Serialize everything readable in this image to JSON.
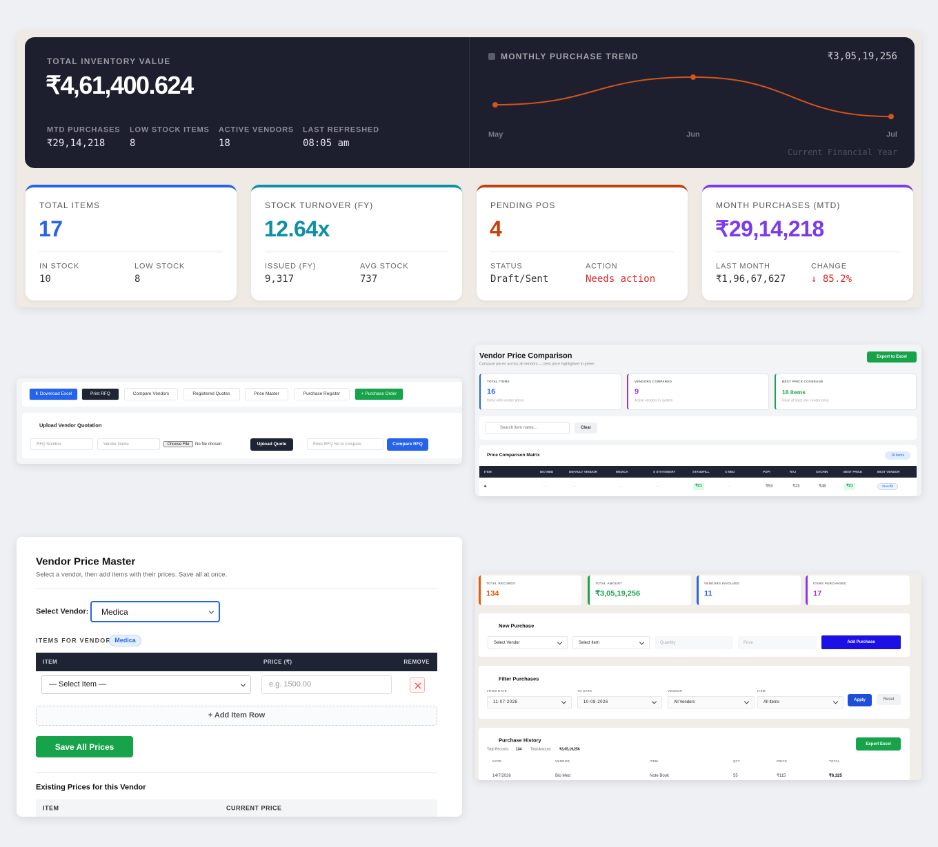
{
  "hero": {
    "label": "TOTAL INVENTORY VALUE",
    "value": "₹4,61,400.624",
    "stats": [
      {
        "label": "MTD PURCHASES",
        "value": "₹29,14,218"
      },
      {
        "label": "LOW STOCK ITEMS",
        "value": "8"
      },
      {
        "label": "ACTIVE VENDORS",
        "value": "18"
      },
      {
        "label": "LAST REFRESHED",
        "value": "08:05 am"
      }
    ],
    "trend_chart": {
      "type": "line",
      "title": "MONTHLY PURCHASE TREND",
      "total": "₹3,05,19,256",
      "categories": [
        "May",
        "Jun",
        "Jul"
      ],
      "values": [
        7900000,
        19700000,
        2900000
      ],
      "ylim": [
        0,
        23200000
      ],
      "color": "#d4541c",
      "note": "Current Financial Year"
    }
  },
  "kpis": [
    {
      "title": "TOTAL ITEMS",
      "value": "17",
      "color": "#2563eb",
      "details": [
        {
          "label": "IN STOCK",
          "value": "10"
        },
        {
          "label": "LOW STOCK",
          "value": "8"
        }
      ]
    },
    {
      "title": "STOCK TURNOVER (FY)",
      "value": "12.64x",
      "color": "#0e8fa8",
      "details": [
        {
          "label": "ISSUED (FY)",
          "value": "9,317"
        },
        {
          "label": "AVG STOCK",
          "value": "737"
        }
      ]
    },
    {
      "title": "PENDING POS",
      "value": "4",
      "color": "#c2410c",
      "details": [
        {
          "label": "STATUS",
          "value": "Draft/Sent"
        },
        {
          "label": "ACTION",
          "value": "Needs action",
          "color": "#dc2626"
        }
      ]
    },
    {
      "title": "MONTH PURCHASES (MTD)",
      "value": "₹29,14,218",
      "color": "#7c3aed",
      "details": [
        {
          "label": "LAST MONTH",
          "value": "₹1,96,67,627"
        },
        {
          "label": "CHANGE",
          "value": "↓ 85.2%",
          "color": "#dc2626"
        }
      ]
    }
  ],
  "toolbar": {
    "buttons": [
      "⬇ Download Excel",
      "Print RFQ",
      "Compare Vendors",
      "Registered Quotes",
      "Price Master",
      "Purchase Register",
      "+ Purchase Order"
    ],
    "upload": {
      "title": "Upload Vendor Quotation",
      "rfq_number": "RFQ Number",
      "vendor_name": "Vendor Name",
      "choose_file": "Choose File",
      "file_status": "No file chosen",
      "upload_button": "Upload Quote",
      "compare_input": "Enter RFQ No to compare",
      "compare_button": "Compare RFQ"
    }
  },
  "comparison": {
    "title": "Vendor Price Comparison",
    "subtitle": "Compare prices across all vendors — best price highlighted in green",
    "export_button": "Export to Excel",
    "cards": [
      {
        "label": "TOTAL ITEMS",
        "value": "16",
        "note": "Items with vendor prices",
        "color": "#2563eb"
      },
      {
        "label": "VENDORS COMPARED",
        "value": "9",
        "note": "Active vendors in system",
        "color": "#9333ea"
      },
      {
        "label": "BEST PRICE COVERAGE",
        "value": "16 items",
        "note": "Have at least one vendor price",
        "color": "#16a34a"
      }
    ],
    "search_placeholder": "Search item name...",
    "clear_button": "Clear",
    "matrix_title": "Price Comparison Matrix",
    "matrix_count": "16 items",
    "table": {
      "headers": [
        "ITEM",
        "BIO MED",
        "DEFAULT VENDOR",
        "MEDICA",
        "S STATIONERY",
        "STANDFILL",
        "X MED",
        "POPI",
        "RAJ",
        "SACHIN",
        "BEST PRICE",
        "BEST VENDOR"
      ],
      "rows": [
        [
          "a",
          "—",
          "—",
          "—",
          "—",
          "₹21",
          "—",
          "₹53",
          "₹23",
          "₹45",
          "₹21",
          "Standfill"
        ]
      ]
    }
  },
  "price_master": {
    "title": "Vendor Price Master",
    "subtitle": "Select a vendor, then add items with their prices. Save all at once.",
    "vendor_label": "Select Vendor:",
    "vendor": "Medica",
    "items_label": "ITEMS FOR VENDOR",
    "items_vendor": "Medica",
    "table_headers": [
      "ITEM",
      "PRICE (₹)",
      "REMOVE"
    ],
    "item_select": "— Select Item —",
    "price_placeholder": "e.g. 1500.00",
    "add_row": "+ Add Item Row",
    "save_button": "Save All Prices",
    "existing_title": "Existing Prices for this Vendor",
    "existing_headers": [
      "ITEM",
      "CURRENT PRICE"
    ]
  },
  "purchases": {
    "cards": [
      {
        "label": "TOTAL RECORDS",
        "value": "134",
        "color": "#ea580c"
      },
      {
        "label": "TOTAL AMOUNT",
        "value": "₹3,05,19,256",
        "color": "#16a34a"
      },
      {
        "label": "VENDORS INVOLVED",
        "value": "11",
        "color": "#2563eb"
      },
      {
        "label": "ITEMS PURCHASED",
        "value": "17",
        "color": "#9333ea"
      }
    ],
    "new_purchase": {
      "title": "New Purchase",
      "fields": [
        "Select Vendor",
        "Select Item",
        "Quantity",
        "Price"
      ],
      "button": "Add Purchase"
    },
    "filter": {
      "title": "Filter Purchases",
      "fields": [
        {
          "label": "FROM DATE",
          "value": "11-07-2026"
        },
        {
          "label": "TO DATE",
          "value": "10-08-2026"
        },
        {
          "label": "VENDOR",
          "value": "All Vendors"
        },
        {
          "label": "ITEM",
          "value": "All Items"
        }
      ],
      "apply_button": "Apply",
      "reset_button": "Reset"
    },
    "history": {
      "title": "Purchase History",
      "total_records_label": "Total Records:",
      "total_records": "134",
      "total_amount_label": "Total Amount:",
      "total_amount": "₹3,05,19,256",
      "export_button": "Export Excel",
      "table": {
        "headers": [
          "DATE",
          "VENDOR",
          "ITEM",
          "QTY",
          "PRICE",
          "TOTAL"
        ],
        "rows": [
          [
            "14/7/2026",
            "Bio Med",
            "Note Book",
            "55",
            "₹115",
            "₹6,325"
          ]
        ]
      }
    }
  }
}
